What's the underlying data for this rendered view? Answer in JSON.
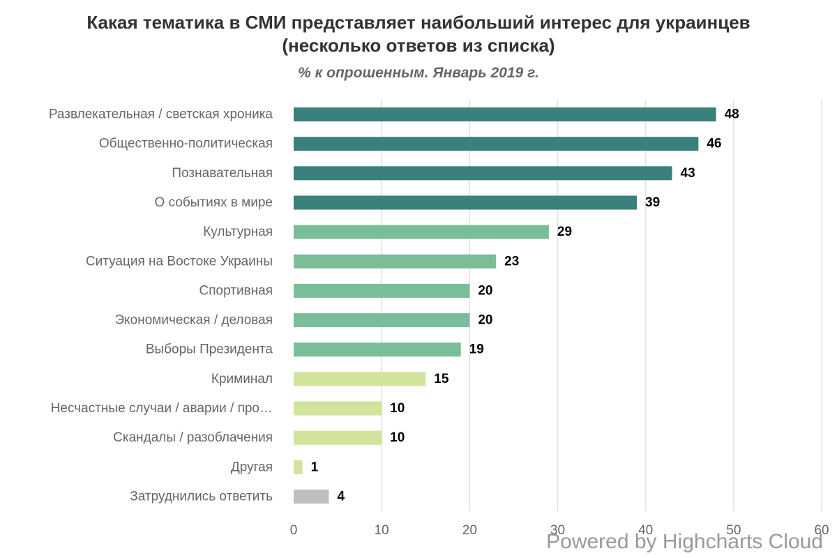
{
  "chart_data": {
    "type": "bar",
    "title_lines": [
      "Какая тематика в СМИ представляет наибольший интерес для украинцев",
      "(несколько ответов из списка)"
    ],
    "subtitle": "% к опрошенным. Январь 2019 г.",
    "categories": [
      "Развлекательная / светская хроника",
      "Общественно-политическая",
      "Познавательная",
      "О событиях в мире",
      "Культурная",
      "Ситуация на Востоке Украины",
      "Спортивная",
      "Экономическая / деловая",
      "Выборы Президента",
      "Криминал",
      "Несчастные случаи / аварии / про…",
      "Скандалы / разоблачения",
      "Другая",
      "Затруднились ответить"
    ],
    "values": [
      48,
      46,
      43,
      39,
      29,
      23,
      20,
      20,
      19,
      15,
      10,
      10,
      1,
      4
    ],
    "bar_colors": [
      "#3a807b",
      "#3a807b",
      "#3a807b",
      "#3a807b",
      "#7abd99",
      "#7abd99",
      "#7abd99",
      "#7abd99",
      "#7abd99",
      "#d2e39c",
      "#d2e39c",
      "#d2e39c",
      "#d2e39c",
      "#bfbfbf"
    ],
    "xlim": [
      0,
      60
    ],
    "ticks": [
      0,
      10,
      20,
      30,
      40,
      50,
      60
    ],
    "grid": true,
    "data_labels": true
  },
  "credit": "Powered by Highcharts Cloud"
}
